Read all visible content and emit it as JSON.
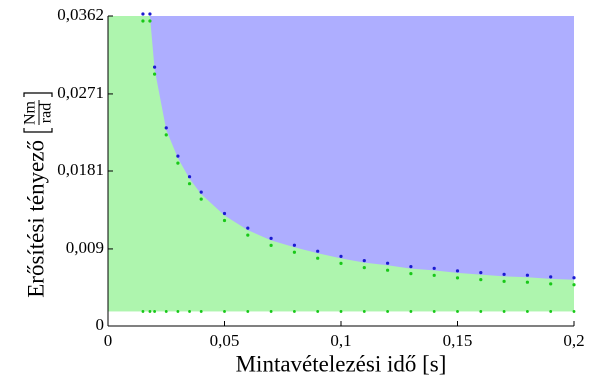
{
  "chart_data": {
    "type": "stability-region",
    "xlabel": "Mintavételezési idő [s]",
    "ylabel": "Erősítési tényező",
    "ylabel_unit": {
      "numerator": "Nm",
      "denominator": "rad"
    },
    "xlim": [
      0,
      0.2
    ],
    "ylim": [
      0,
      0.0362
    ],
    "xticks": [
      0,
      {
        "value": 0.05,
        "label": "0,05"
      },
      {
        "value": 0.1,
        "label": "0,1"
      },
      {
        "value": 0.15,
        "label": "0,15"
      },
      {
        "value": 0.2,
        "label": "0,2"
      }
    ],
    "yticks": [
      0,
      {
        "value": 0.009,
        "label": "0,009"
      },
      {
        "value": 0.0181,
        "label": "0,0181"
      },
      {
        "value": 0.0271,
        "label": "0,0271"
      },
      {
        "value": 0.0362,
        "label": "0,0362"
      }
    ],
    "x": [
      0.015,
      0.018,
      0.02,
      0.025,
      0.03,
      0.035,
      0.04,
      0.05,
      0.06,
      0.07,
      0.08,
      0.09,
      0.1,
      0.11,
      0.12,
      0.13,
      0.14,
      0.15,
      0.16,
      0.17,
      0.18,
      0.19,
      0.2
    ],
    "values": [
      0.0362,
      0.0362,
      0.03,
      0.0229,
      0.0196,
      0.0172,
      0.0154,
      0.0129,
      0.0112,
      0.01,
      0.0092,
      0.0085,
      0.0079,
      0.0074,
      0.0071,
      0.0067,
      0.0065,
      0.0062,
      0.006,
      0.0058,
      0.0057,
      0.0055,
      0.0054
    ],
    "floor": 0.0017,
    "unstable_color": "#aeaeff",
    "stable_color": "#aef5ae",
    "unstable_dot_color": "#1a1ad0",
    "stable_dot_color": "#18c818"
  }
}
